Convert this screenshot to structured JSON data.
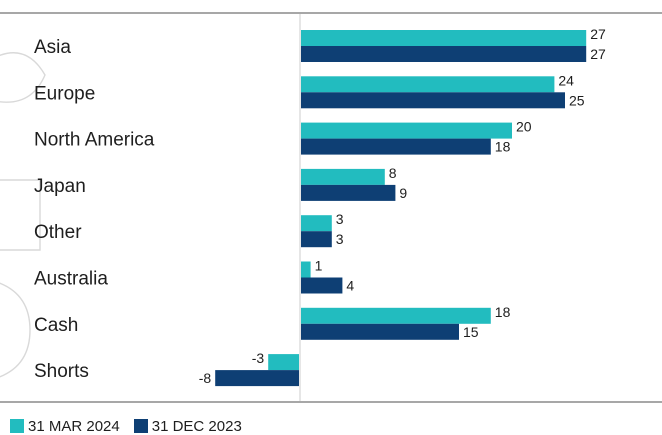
{
  "chart_data": {
    "type": "bar",
    "orientation": "horizontal",
    "categories": [
      "Asia",
      "Europe",
      "North America",
      "Japan",
      "Other",
      "Australia",
      "Cash",
      "Shorts"
    ],
    "series": [
      {
        "name": "31 MAR 2024",
        "color": "#22bcbf",
        "values": [
          27,
          24,
          20,
          8,
          3,
          1,
          18,
          -3
        ]
      },
      {
        "name": "31 DEC 2023",
        "color": "#0e3f74",
        "values": [
          27,
          25,
          18,
          9,
          3,
          4,
          15,
          -8
        ]
      }
    ],
    "xlim": [
      -10,
      30
    ],
    "grid": false,
    "legend": "bottom-left"
  }
}
